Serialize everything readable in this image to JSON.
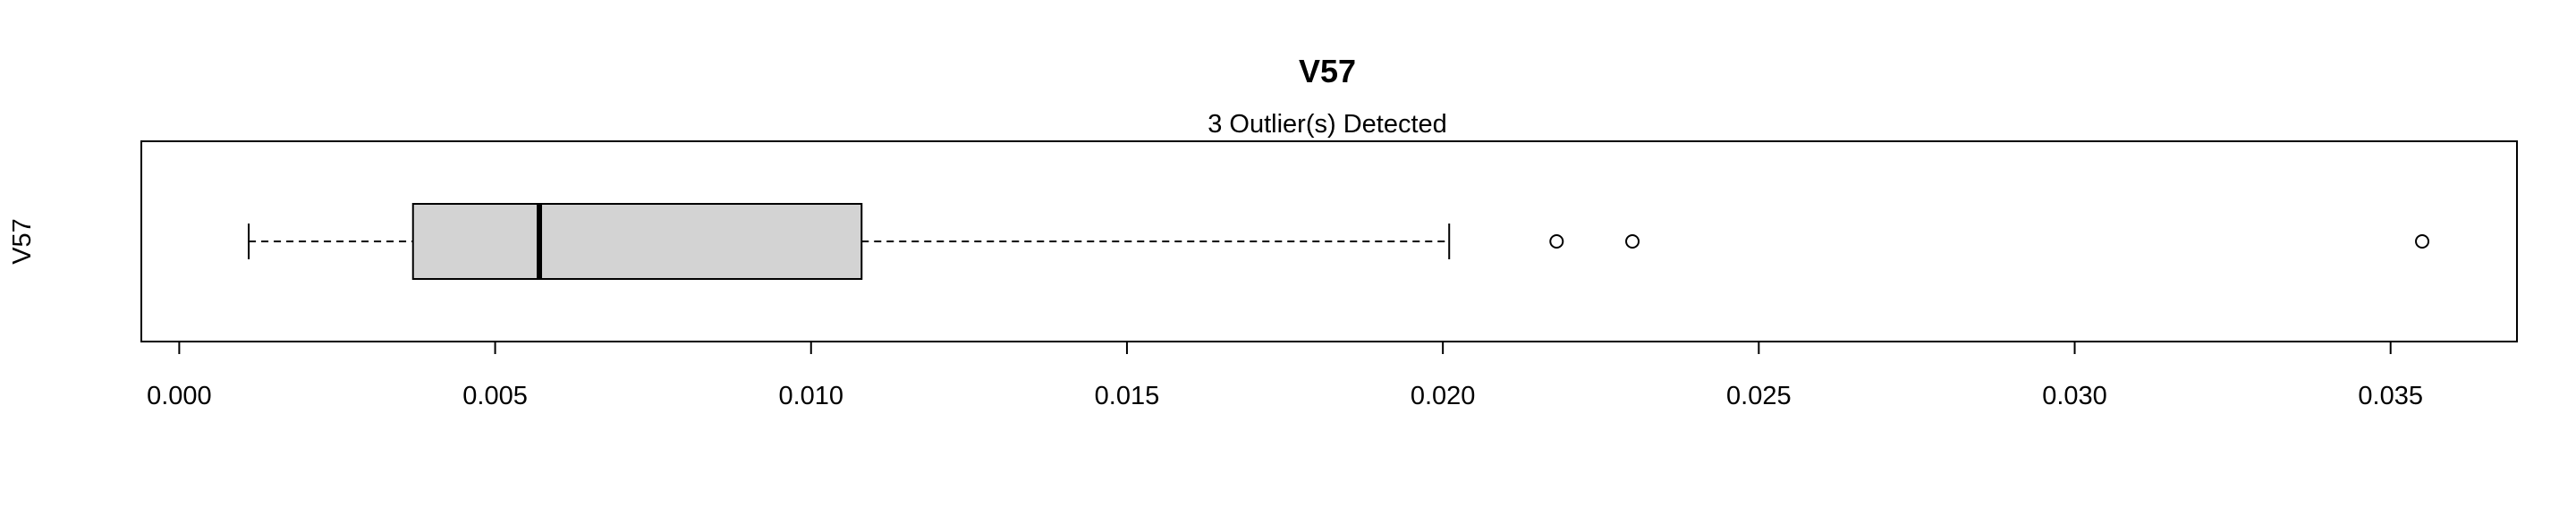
{
  "chart_data": {
    "type": "boxplot",
    "orientation": "horizontal",
    "title": "V57",
    "subtitle": "3 Outlier(s) Detected",
    "ylabel": "V57",
    "xlim": [
      -0.0006,
      0.037
    ],
    "x_ticks": [
      0.0,
      0.005,
      0.01,
      0.015,
      0.02,
      0.025,
      0.03,
      0.035
    ],
    "x_tick_labels": [
      "0.000",
      "0.005",
      "0.010",
      "0.015",
      "0.020",
      "0.025",
      "0.030",
      "0.035"
    ],
    "box": {
      "whisker_low": 0.0011,
      "q1": 0.0037,
      "median": 0.0057,
      "q3": 0.0108,
      "whisker_high": 0.0201
    },
    "outliers": [
      0.0218,
      0.023,
      0.0355
    ],
    "colors": {
      "box_fill": "#d3d3d3",
      "stroke": "#000000"
    }
  }
}
